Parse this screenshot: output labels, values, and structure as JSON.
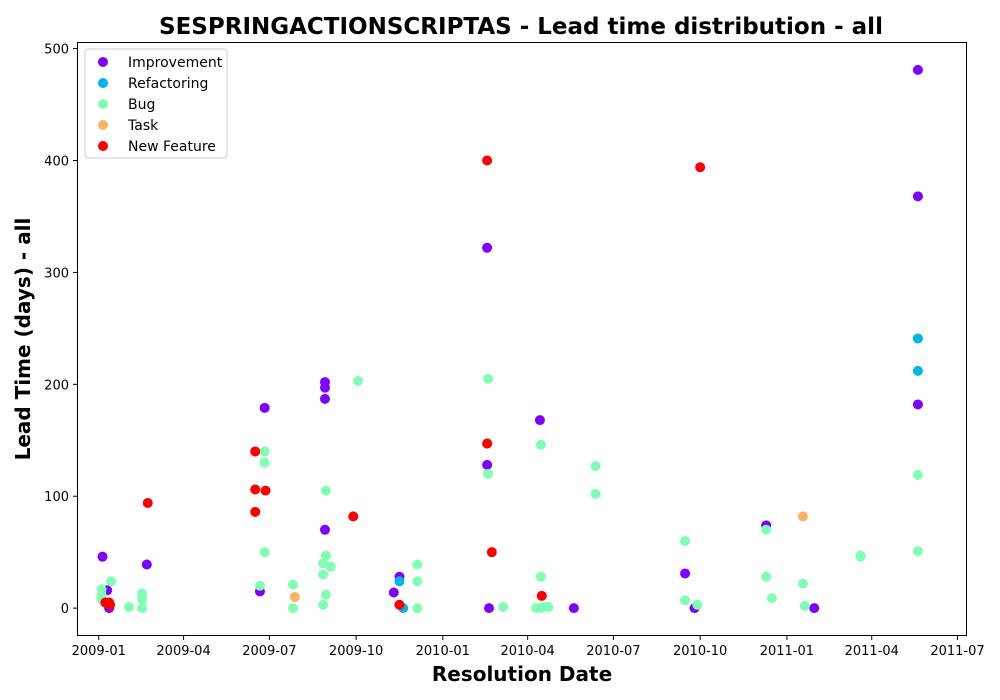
{
  "chart_data": {
    "type": "scatter",
    "title": "SESPRINGACTIONSCRIPTAS - Lead time distribution - all",
    "xlabel": "Resolution Date",
    "ylabel": "Lead Time (days) - all",
    "xlim": [
      "2008-12-10",
      "2011-07-10"
    ],
    "ylim": [
      -24,
      505
    ],
    "x_ticks": [
      "2009-01",
      "2009-04",
      "2009-07",
      "2009-10",
      "2010-01",
      "2010-04",
      "2010-07",
      "2010-10",
      "2011-01",
      "2011-04",
      "2011-07"
    ],
    "y_ticks": [
      0,
      100,
      200,
      300,
      400,
      500
    ],
    "grid": false,
    "legend_position": "top-left",
    "series": [
      {
        "name": "Improvement",
        "color": "#8000ff",
        "points": [
          [
            "2009-01-05",
            46
          ],
          [
            "2009-01-10",
            16
          ],
          [
            "2009-01-12",
            0
          ],
          [
            "2009-02-21",
            39
          ],
          [
            "2009-06-21",
            15
          ],
          [
            "2009-06-26",
            179
          ],
          [
            "2009-08-29",
            202
          ],
          [
            "2009-08-29",
            197
          ],
          [
            "2009-08-29",
            187
          ],
          [
            "2009-08-29",
            70
          ],
          [
            "2009-11-10",
            14
          ],
          [
            "2009-11-16",
            28
          ],
          [
            "2010-02-17",
            322
          ],
          [
            "2010-02-17",
            128
          ],
          [
            "2010-02-19",
            0
          ],
          [
            "2010-04-14",
            168
          ],
          [
            "2010-05-20",
            0
          ],
          [
            "2010-09-15",
            31
          ],
          [
            "2010-09-25",
            0
          ],
          [
            "2010-12-10",
            74
          ],
          [
            "2011-01-30",
            0
          ],
          [
            "2011-05-20",
            481
          ],
          [
            "2011-05-20",
            368
          ],
          [
            "2011-05-20",
            182
          ]
        ]
      },
      {
        "name": "Refactoring",
        "color": "#00b4ec",
        "points": [
          [
            "2009-11-16",
            24
          ],
          [
            "2009-11-20",
            0
          ],
          [
            "2011-05-20",
            241
          ],
          [
            "2011-05-20",
            212
          ]
        ]
      },
      {
        "name": "Bug",
        "color": "#80ffb4",
        "points": [
          [
            "2009-01-04",
            17
          ],
          [
            "2009-01-04",
            12
          ],
          [
            "2009-01-04",
            8
          ],
          [
            "2009-01-14",
            24
          ],
          [
            "2009-02-02",
            1
          ],
          [
            "2009-02-16",
            13
          ],
          [
            "2009-02-16",
            8
          ],
          [
            "2009-02-16",
            0
          ],
          [
            "2009-06-21",
            20
          ],
          [
            "2009-06-26",
            140
          ],
          [
            "2009-06-26",
            130
          ],
          [
            "2009-06-26",
            50
          ],
          [
            "2009-07-26",
            21
          ],
          [
            "2009-07-26",
            0
          ],
          [
            "2009-08-27",
            40
          ],
          [
            "2009-08-27",
            30
          ],
          [
            "2009-08-27",
            3
          ],
          [
            "2009-08-30",
            105
          ],
          [
            "2009-08-30",
            47
          ],
          [
            "2009-08-30",
            12
          ],
          [
            "2009-09-04",
            37
          ],
          [
            "2009-10-03",
            203
          ],
          [
            "2009-12-05",
            39
          ],
          [
            "2009-12-05",
            24
          ],
          [
            "2009-12-05",
            0
          ],
          [
            "2010-02-18",
            205
          ],
          [
            "2010-02-18",
            148
          ],
          [
            "2010-02-18",
            120
          ],
          [
            "2010-03-06",
            1
          ],
          [
            "2010-04-10",
            0
          ],
          [
            "2010-04-15",
            146
          ],
          [
            "2010-04-15",
            28
          ],
          [
            "2010-04-15",
            0
          ],
          [
            "2010-04-18",
            1
          ],
          [
            "2010-04-23",
            1
          ],
          [
            "2010-06-12",
            127
          ],
          [
            "2010-06-12",
            102
          ],
          [
            "2010-09-15",
            60
          ],
          [
            "2010-09-15",
            7
          ],
          [
            "2010-09-28",
            3
          ],
          [
            "2010-12-10",
            70
          ],
          [
            "2010-12-10",
            28
          ],
          [
            "2010-12-16",
            9
          ],
          [
            "2011-01-18",
            22
          ],
          [
            "2011-01-20",
            2
          ],
          [
            "2011-03-20",
            47
          ],
          [
            "2011-03-20",
            46
          ],
          [
            "2011-05-20",
            119
          ],
          [
            "2011-05-20",
            51
          ]
        ]
      },
      {
        "name": "Task",
        "color": "#ffb360",
        "points": [
          [
            "2009-07-28",
            10
          ],
          [
            "2011-01-18",
            82
          ]
        ]
      },
      {
        "name": "New Feature",
        "color": "#ff0000",
        "points": [
          [
            "2009-01-08",
            5
          ],
          [
            "2009-01-12",
            5
          ],
          [
            "2009-01-13",
            3
          ],
          [
            "2009-02-22",
            94
          ],
          [
            "2009-06-16",
            140
          ],
          [
            "2009-06-16",
            106
          ],
          [
            "2009-06-16",
            86
          ],
          [
            "2009-06-27",
            105
          ],
          [
            "2009-09-28",
            82
          ],
          [
            "2009-11-16",
            3
          ],
          [
            "2010-02-17",
            400
          ],
          [
            "2010-02-17",
            147
          ],
          [
            "2010-02-22",
            50
          ],
          [
            "2010-04-16",
            11
          ],
          [
            "2010-10-01",
            394
          ]
        ]
      }
    ]
  }
}
